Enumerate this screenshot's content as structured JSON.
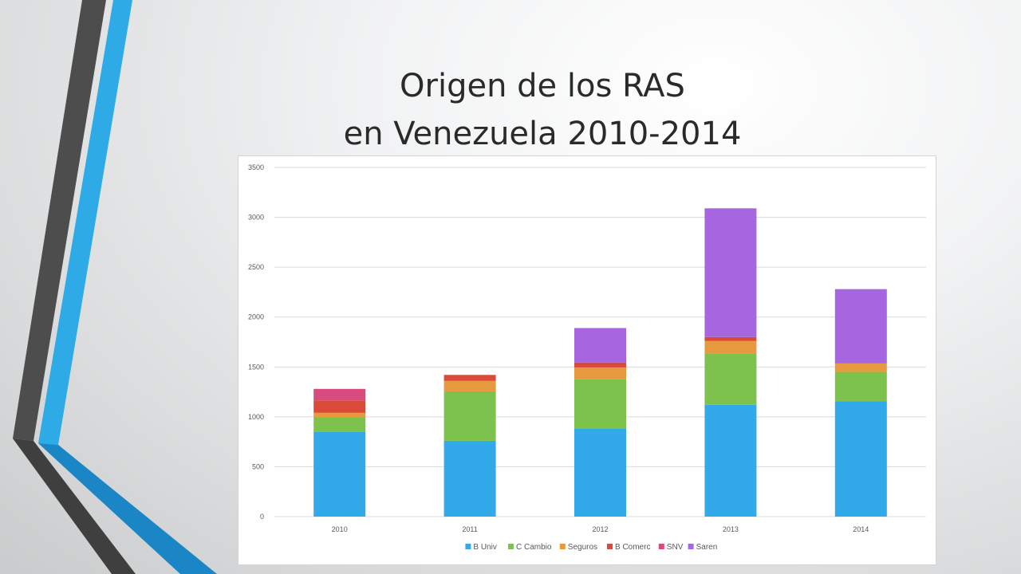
{
  "slide": {
    "title_line1": "Origen de los RAS",
    "title_line2": "en Venezuela 2010-2014"
  },
  "colors": {
    "decor_dark": "#4d4d4d",
    "decor_blue": "#2eaae6",
    "grid": "#d9d9d9"
  },
  "chart_data": {
    "type": "bar",
    "stacked": true,
    "categories": [
      "2010",
      "2011",
      "2012",
      "2013",
      "2014"
    ],
    "ylim": [
      0,
      3500
    ],
    "yticks": [
      0,
      500,
      1000,
      1500,
      2000,
      2500,
      3000,
      3500
    ],
    "grid": true,
    "legend_position": "bottom",
    "series": [
      {
        "name": "B Univ",
        "color": "#32a9e8",
        "values": [
          850,
          760,
          885,
          1120,
          1155
        ]
      },
      {
        "name": "C Cambio",
        "color": "#7ec24e",
        "values": [
          145,
          495,
          495,
          515,
          295
        ]
      },
      {
        "name": "Seguros",
        "color": "#e6993f",
        "values": [
          45,
          105,
          115,
          125,
          85
        ]
      },
      {
        "name": "B Comerc",
        "color": "#d94a38",
        "values": [
          125,
          60,
          50,
          40,
          0
        ]
      },
      {
        "name": "SNV",
        "color": "#d94a7e",
        "values": [
          115,
          0,
          0,
          0,
          0
        ]
      },
      {
        "name": "Saren",
        "color": "#a566e0",
        "values": [
          0,
          0,
          345,
          1290,
          745
        ]
      }
    ]
  }
}
